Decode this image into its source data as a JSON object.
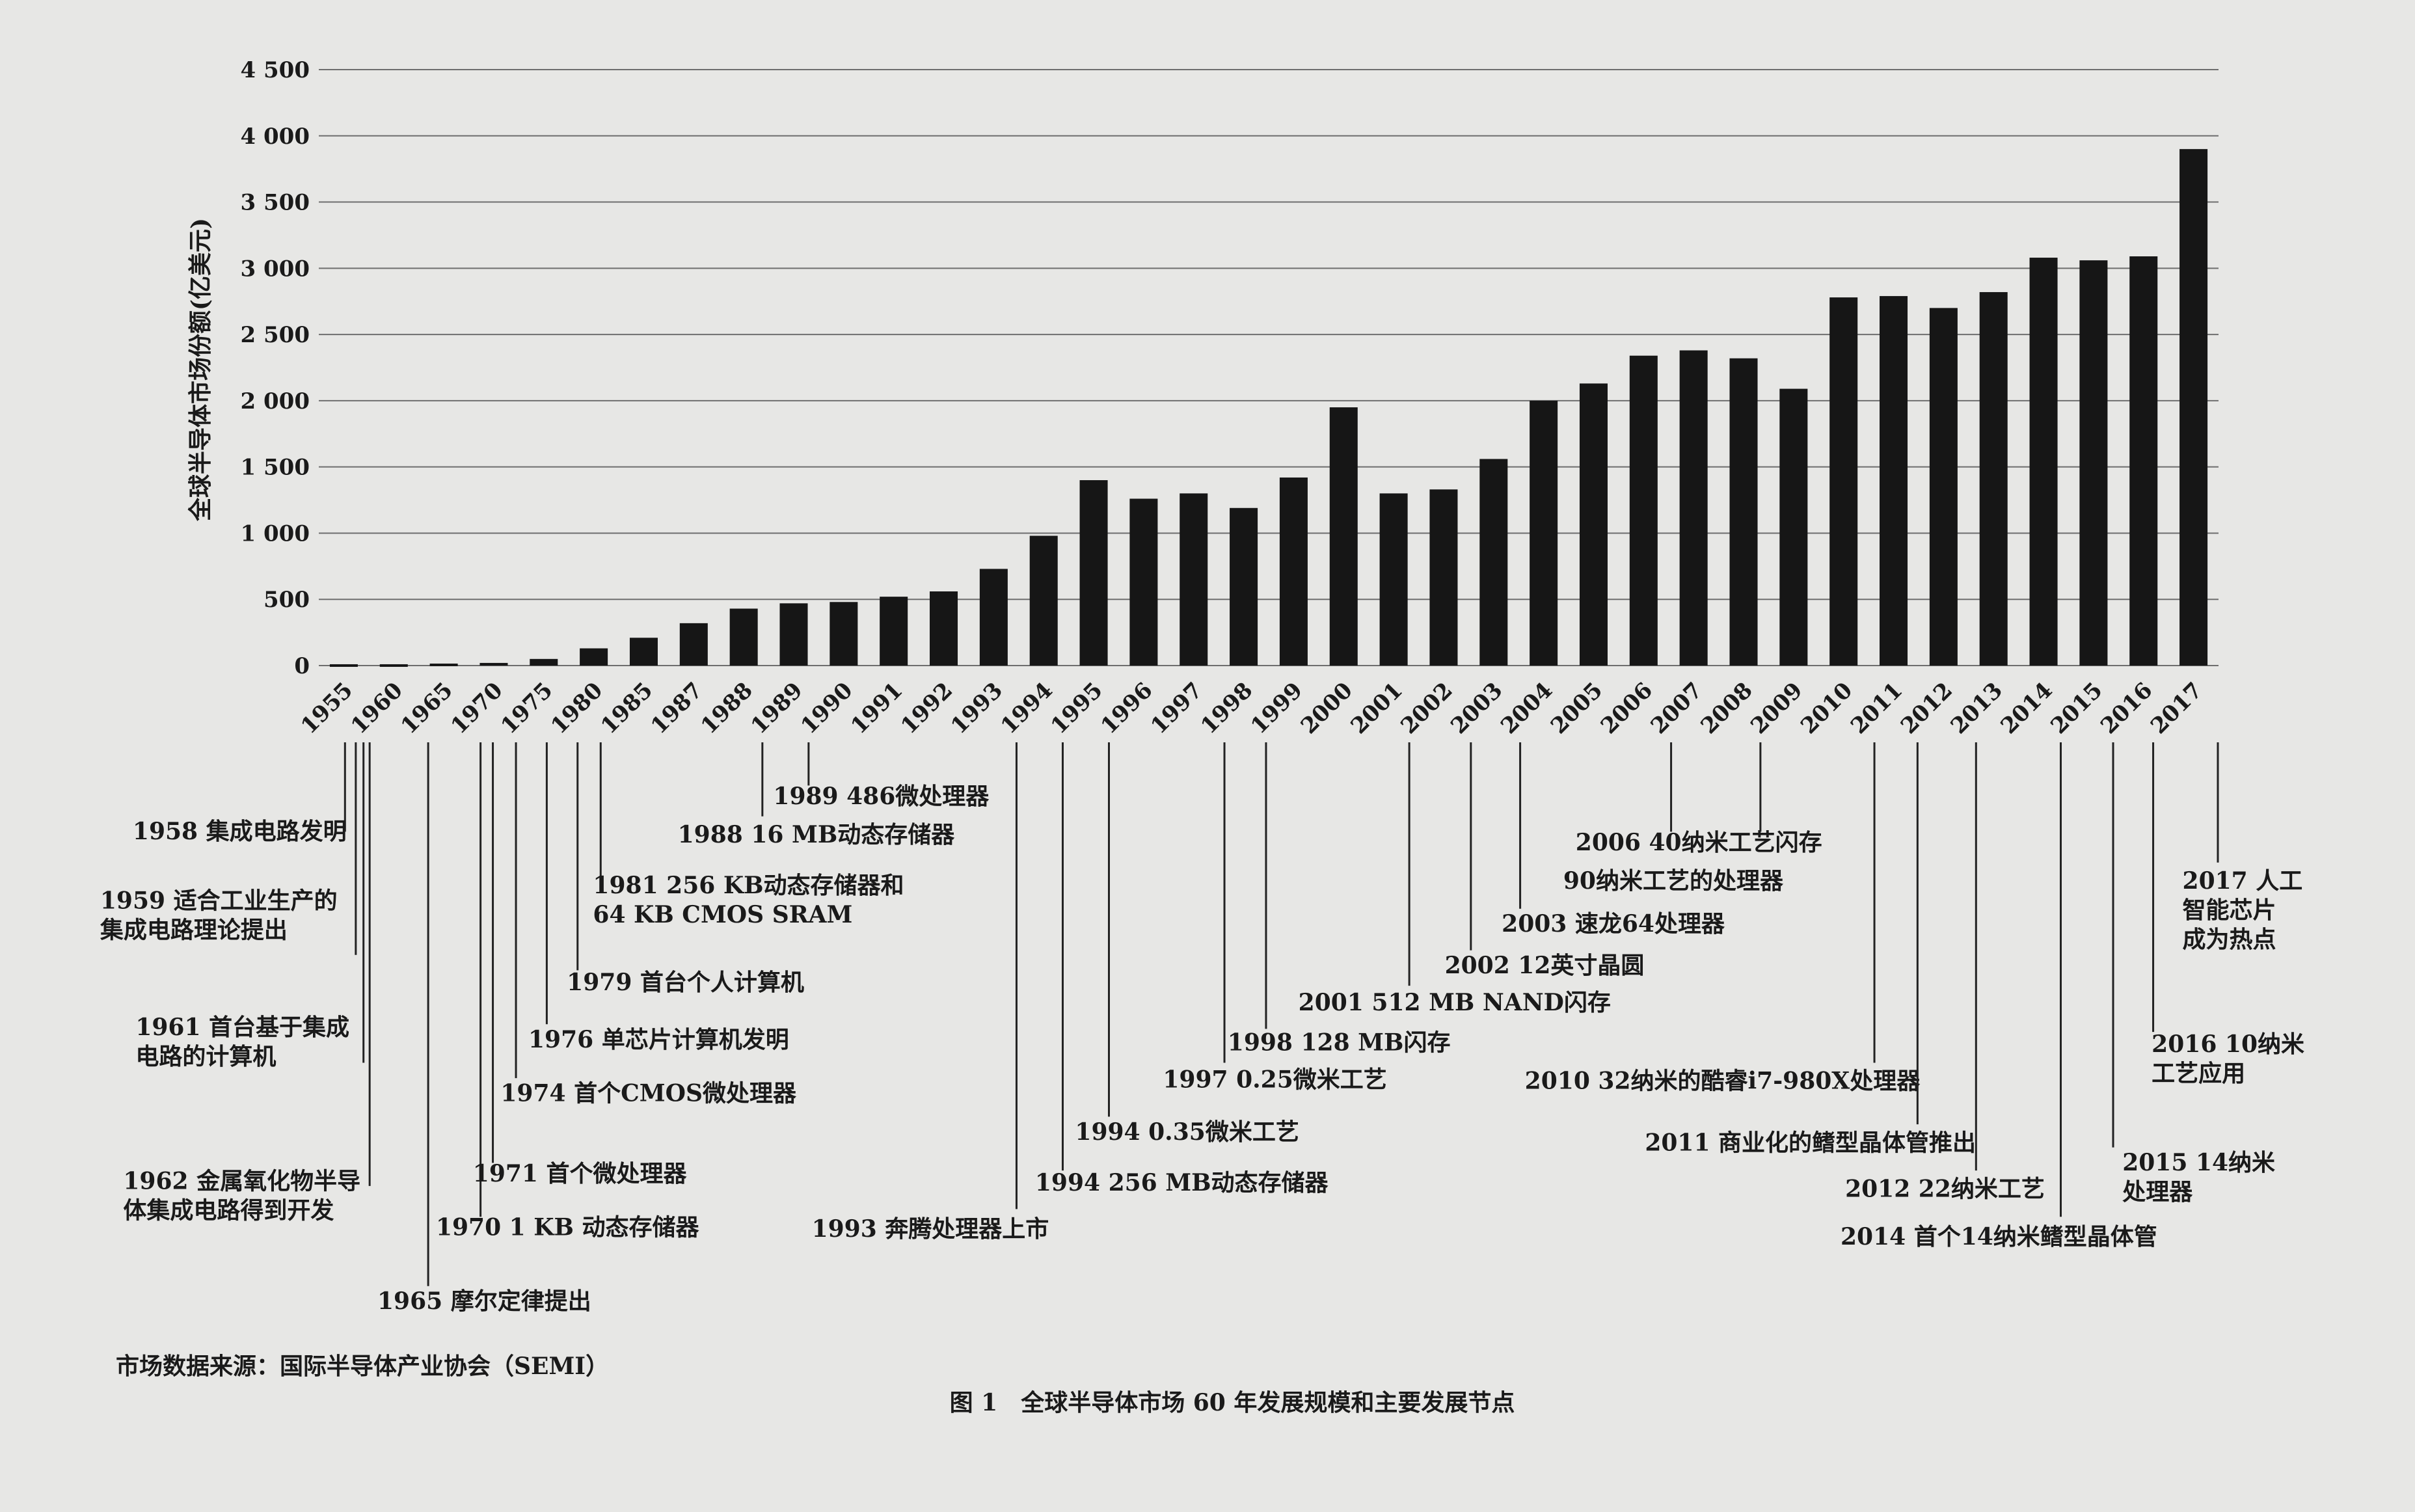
{
  "chart_data": {
    "type": "bar",
    "title": "图 1　全球半导体市场 60 年发展规模和主要发展节点",
    "source": "市场数据来源：国际半导体产业协会（SEMI）",
    "y_label": "全球半导体市场份额(亿美元)",
    "categories": [
      "1955",
      "1960",
      "1965",
      "1970",
      "1975",
      "1980",
      "1985",
      "1987",
      "1988",
      "1989",
      "1990",
      "1991",
      "1992",
      "1993",
      "1994",
      "1995",
      "1996",
      "1997",
      "1998",
      "1999",
      "2000",
      "2001",
      "2002",
      "2003",
      "2004",
      "2005",
      "2006",
      "2007",
      "2008",
      "2009",
      "2010",
      "2011",
      "2012",
      "2013",
      "2014",
      "2015",
      "2016",
      "2017"
    ],
    "values": [
      10,
      10,
      15,
      20,
      50,
      130,
      210,
      320,
      430,
      470,
      480,
      520,
      560,
      730,
      980,
      1400,
      1260,
      1300,
      1190,
      1420,
      1950,
      1300,
      1330,
      1560,
      2000,
      2130,
      2340,
      2380,
      2320,
      2090,
      2780,
      2790,
      2700,
      2820,
      3080,
      3060,
      3090,
      3900
    ],
    "color": "#161616",
    "ylim": [
      0,
      4500
    ],
    "yticks": [
      0,
      500,
      {
        "value": 1000,
        "label": "1 000"
      },
      {
        "value": 1500,
        "label": "1 500"
      },
      {
        "value": 2000,
        "label": "2 000"
      },
      {
        "value": 2500,
        "label": "2 500"
      },
      {
        "value": 3000,
        "label": "3 000"
      },
      {
        "value": 3500,
        "label": "3 500"
      },
      {
        "value": 4000,
        "label": "4 000"
      },
      {
        "value": 4500,
        "label": "4 500"
      }
    ],
    "grid": true,
    "annotations": [
      {
        "lines": [
          "1958 集成电路发明"
        ]
      },
      {
        "lines": [
          "1959 适合工业生产的",
          "集成电路理论提出"
        ]
      },
      {
        "lines": [
          "1961 首台基于集成",
          "电路的计算机"
        ]
      },
      {
        "lines": [
          "1962 金属氧化物半导",
          "体集成电路得到开发"
        ]
      },
      {
        "lines": [
          "1965 摩尔定律提出"
        ]
      },
      {
        "lines": [
          "1970 1 KB 动态存储器"
        ]
      },
      {
        "lines": [
          "1971 首个微处理器"
        ]
      },
      {
        "lines": [
          "1974 首个CMOS微处理器"
        ]
      },
      {
        "lines": [
          "1976 单芯片计算机发明"
        ]
      },
      {
        "lines": [
          "1979 首台个人计算机"
        ]
      },
      {
        "lines": [
          "1981 256 KB动态存储器和",
          "64 KB CMOS SRAM"
        ]
      },
      {
        "lines": [
          "1988 16 MB动态存储器"
        ]
      },
      {
        "lines": [
          "1989 486微处理器"
        ]
      },
      {
        "lines": [
          "1993 奔腾处理器上市"
        ]
      },
      {
        "lines": [
          "1994 256 MB动态存储器"
        ]
      },
      {
        "lines": [
          "1994 0.35微米工艺"
        ]
      },
      {
        "lines": [
          "1997 0.25微米工艺"
        ]
      },
      {
        "lines": [
          "1998 128 MB闪存"
        ]
      },
      {
        "lines": [
          "2001 512 MB NAND闪存"
        ]
      },
      {
        "lines": [
          "2002 12英寸晶圆"
        ]
      },
      {
        "lines": [
          "2003 速龙64处理器"
        ]
      },
      {
        "lines": [
          "2006 40纳米工艺闪存"
        ]
      },
      {
        "lines": [
          "90纳米工艺的处理器"
        ]
      },
      {
        "lines": [
          "2010 32纳米的酷睿i7-980X处理器"
        ]
      },
      {
        "lines": [
          "2011 商业化的鳍型晶体管推出"
        ]
      },
      {
        "lines": [
          "2012 22纳米工艺"
        ]
      },
      {
        "lines": [
          "2014 首个14纳米鳍型晶体管"
        ]
      },
      {
        "lines": [
          "2015 14纳米",
          "处理器"
        ]
      },
      {
        "lines": [
          "2016 10纳米",
          "工艺应用"
        ]
      },
      {
        "lines": [
          "2017 人工",
          "智能芯片",
          "成为热点"
        ]
      }
    ]
  }
}
